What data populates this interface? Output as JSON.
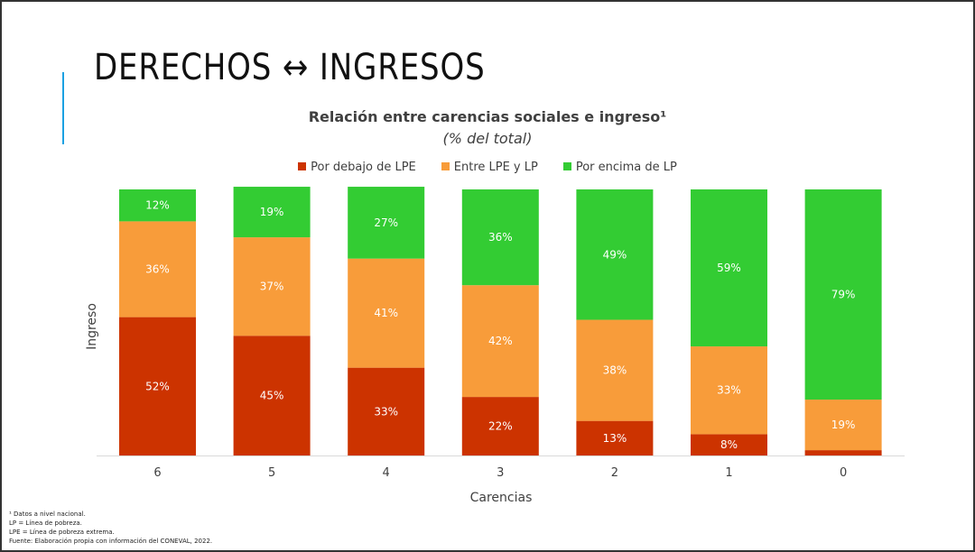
{
  "slide": {
    "title": "DERECHOS ↔ INGRESOS",
    "accent_color": "#1ba1e2"
  },
  "footnotes": [
    "¹ Datos a nivel nacional.",
    "LP = Línea de pobreza.",
    "LPE = Línea de pobreza extrema.",
    "Fuente: Elaboración propia con información del CONEVAL, 2022."
  ],
  "chart_data": {
    "type": "bar",
    "stacked": true,
    "title": "Relación entre carencias sociales e ingreso¹",
    "subtitle": "(% del total)",
    "xlabel": "Carencias",
    "ylabel": "Ingreso",
    "categories": [
      "6",
      "5",
      "4",
      "3",
      "2",
      "1",
      "0"
    ],
    "ylim": [
      0,
      100
    ],
    "grid": false,
    "legend_position": "top",
    "series": [
      {
        "name": "Por debajo de LPE",
        "color": "#cc3300",
        "values": [
          52,
          45,
          33,
          22,
          13,
          8,
          2
        ]
      },
      {
        "name": "Entre LPE y LP",
        "color": "#f89c3a",
        "values": [
          36,
          37,
          41,
          42,
          38,
          33,
          19
        ]
      },
      {
        "name": "Por encima de LP",
        "color": "#33cc33",
        "values": [
          12,
          19,
          27,
          36,
          49,
          59,
          79
        ]
      }
    ]
  }
}
